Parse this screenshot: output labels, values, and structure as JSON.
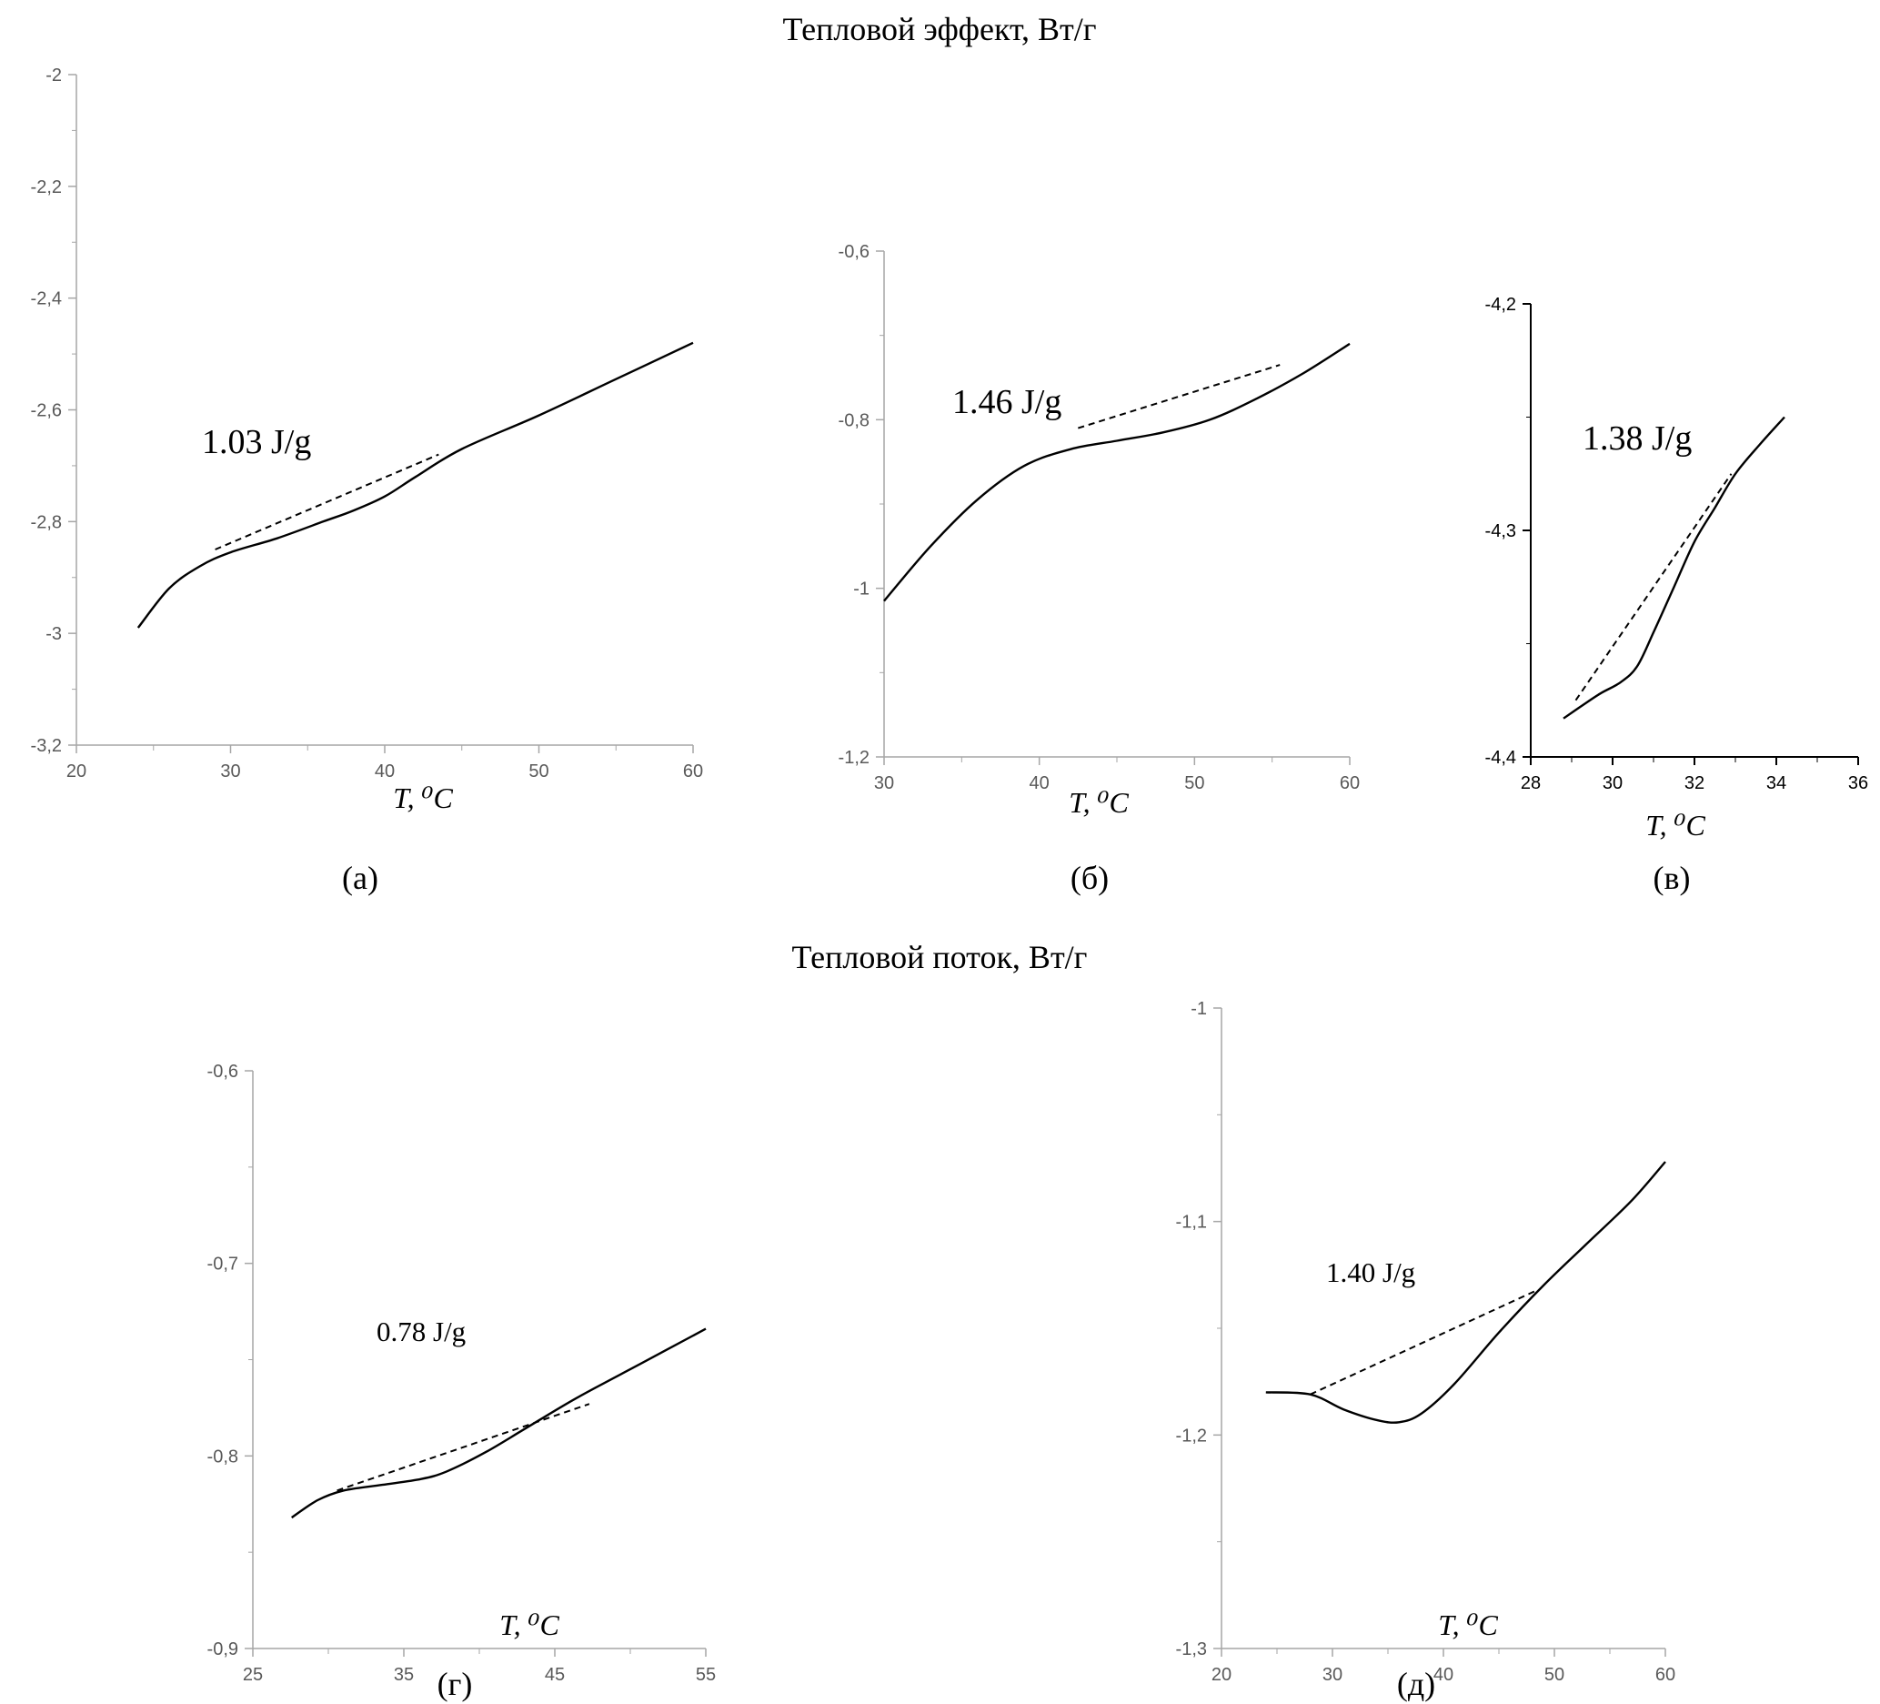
{
  "section_titles": [
    "Тепловой эффект, Вт/г",
    "Тепловой поток, Вт/г"
  ],
  "chart_data": [
    {
      "type": "line",
      "panel_label": "(а)",
      "xlabel": "T, ⁰C",
      "ylabel": "",
      "xlim": [
        20,
        60
      ],
      "ylim": [
        -3.2,
        -2
      ],
      "x_ticks": [
        "20",
        "30",
        "40",
        "50",
        "60"
      ],
      "y_ticks": [
        "-2",
        "-2,2",
        "-2,4",
        "-2,6",
        "-2,8",
        "-3",
        "-3,2"
      ],
      "annotation": "1.03 J/g",
      "series": [
        {
          "style": "solid",
          "x": [
            24,
            26,
            28,
            30,
            33,
            36,
            38,
            40,
            42,
            45,
            50,
            55,
            60
          ],
          "y": [
            -2.99,
            -2.92,
            -2.88,
            -2.855,
            -2.83,
            -2.8,
            -2.78,
            -2.755,
            -2.72,
            -2.67,
            -2.61,
            -2.545,
            -2.48
          ]
        },
        {
          "style": "dashed",
          "x": [
            29,
            43.5
          ],
          "y": [
            -2.85,
            -2.68
          ]
        }
      ]
    },
    {
      "type": "line",
      "panel_label": "(б)",
      "xlabel": "T, ⁰C",
      "ylabel": "",
      "xlim": [
        30,
        60
      ],
      "ylim": [
        -1.2,
        -0.6
      ],
      "x_ticks": [
        "30",
        "40",
        "50",
        "60"
      ],
      "y_ticks": [
        "-0,6",
        "-0,8",
        "-1",
        "-1,2"
      ],
      "annotation": "1.46 J/g",
      "series": [
        {
          "style": "solid",
          "x": [
            30,
            33,
            36,
            39,
            42,
            45,
            48,
            51,
            54,
            57,
            60
          ],
          "y": [
            -1.015,
            -0.95,
            -0.895,
            -0.855,
            -0.835,
            -0.825,
            -0.815,
            -0.8,
            -0.775,
            -0.745,
            -0.71
          ]
        },
        {
          "style": "dashed",
          "x": [
            42.5,
            55.5
          ],
          "y": [
            -0.81,
            -0.735
          ]
        }
      ]
    },
    {
      "type": "line",
      "panel_label": "(в)",
      "xlabel": "T, ⁰C",
      "ylabel": "",
      "xlim": [
        28,
        36
      ],
      "ylim": [
        -4.4,
        -4.2
      ],
      "x_ticks": [
        "28",
        "30",
        "32",
        "34",
        "36"
      ],
      "y_ticks": [
        "-4,2",
        "-4,3",
        "-4,4"
      ],
      "annotation": "1.38 J/g",
      "series": [
        {
          "style": "solid",
          "x": [
            28.8,
            29.2,
            29.7,
            30.2,
            30.6,
            31.0,
            31.5,
            32.0,
            32.5,
            33.0,
            33.6,
            34.2
          ],
          "y": [
            -4.383,
            -4.378,
            -4.372,
            -4.367,
            -4.36,
            -4.345,
            -4.325,
            -4.305,
            -4.29,
            -4.275,
            -4.262,
            -4.25
          ]
        },
        {
          "style": "dashed",
          "x": [
            29.1,
            32.9
          ],
          "y": [
            -4.375,
            -4.275
          ]
        }
      ]
    },
    {
      "type": "line",
      "panel_label": "(г)",
      "xlabel": "T, ⁰C",
      "ylabel": "",
      "xlim": [
        25,
        60
      ],
      "ylim": [
        -0.9,
        -0.6
      ],
      "x_ticks": [
        "25",
        "35",
        "45",
        "55"
      ],
      "y_ticks": [
        "-0,6",
        "-0,7",
        "-0,8",
        "-0,9"
      ],
      "annotation": "0.78 J/g",
      "series": [
        {
          "style": "solid",
          "x": [
            28,
            30,
            32,
            35,
            38,
            40,
            43,
            46,
            50,
            55,
            60
          ],
          "y": [
            -0.832,
            -0.823,
            -0.818,
            -0.815,
            -0.812,
            -0.808,
            -0.798,
            -0.786,
            -0.77,
            -0.752,
            -0.734
          ]
        },
        {
          "style": "dashed",
          "x": [
            31.5,
            51
          ],
          "y": [
            -0.818,
            -0.773
          ]
        }
      ]
    },
    {
      "type": "line",
      "panel_label": "(д)",
      "xlabel": "T, ⁰C",
      "ylabel": "",
      "xlim": [
        20,
        60
      ],
      "ylim": [
        -1.3,
        -1
      ],
      "x_ticks": [
        "20",
        "30",
        "40",
        "50",
        "60"
      ],
      "y_ticks": [
        "-1",
        "-1,1",
        "-1,2",
        "-1,3"
      ],
      "annotation": "1.40 J/g",
      "series": [
        {
          "style": "solid",
          "x": [
            24,
            28,
            31,
            34,
            36,
            38,
            41,
            45,
            49,
            53,
            57,
            60
          ],
          "y": [
            -1.18,
            -1.181,
            -1.188,
            -1.193,
            -1.194,
            -1.19,
            -1.176,
            -1.152,
            -1.13,
            -1.11,
            -1.09,
            -1.072
          ]
        },
        {
          "style": "dashed",
          "x": [
            28,
            48.5
          ],
          "y": [
            -1.181,
            -1.132
          ]
        }
      ]
    }
  ]
}
